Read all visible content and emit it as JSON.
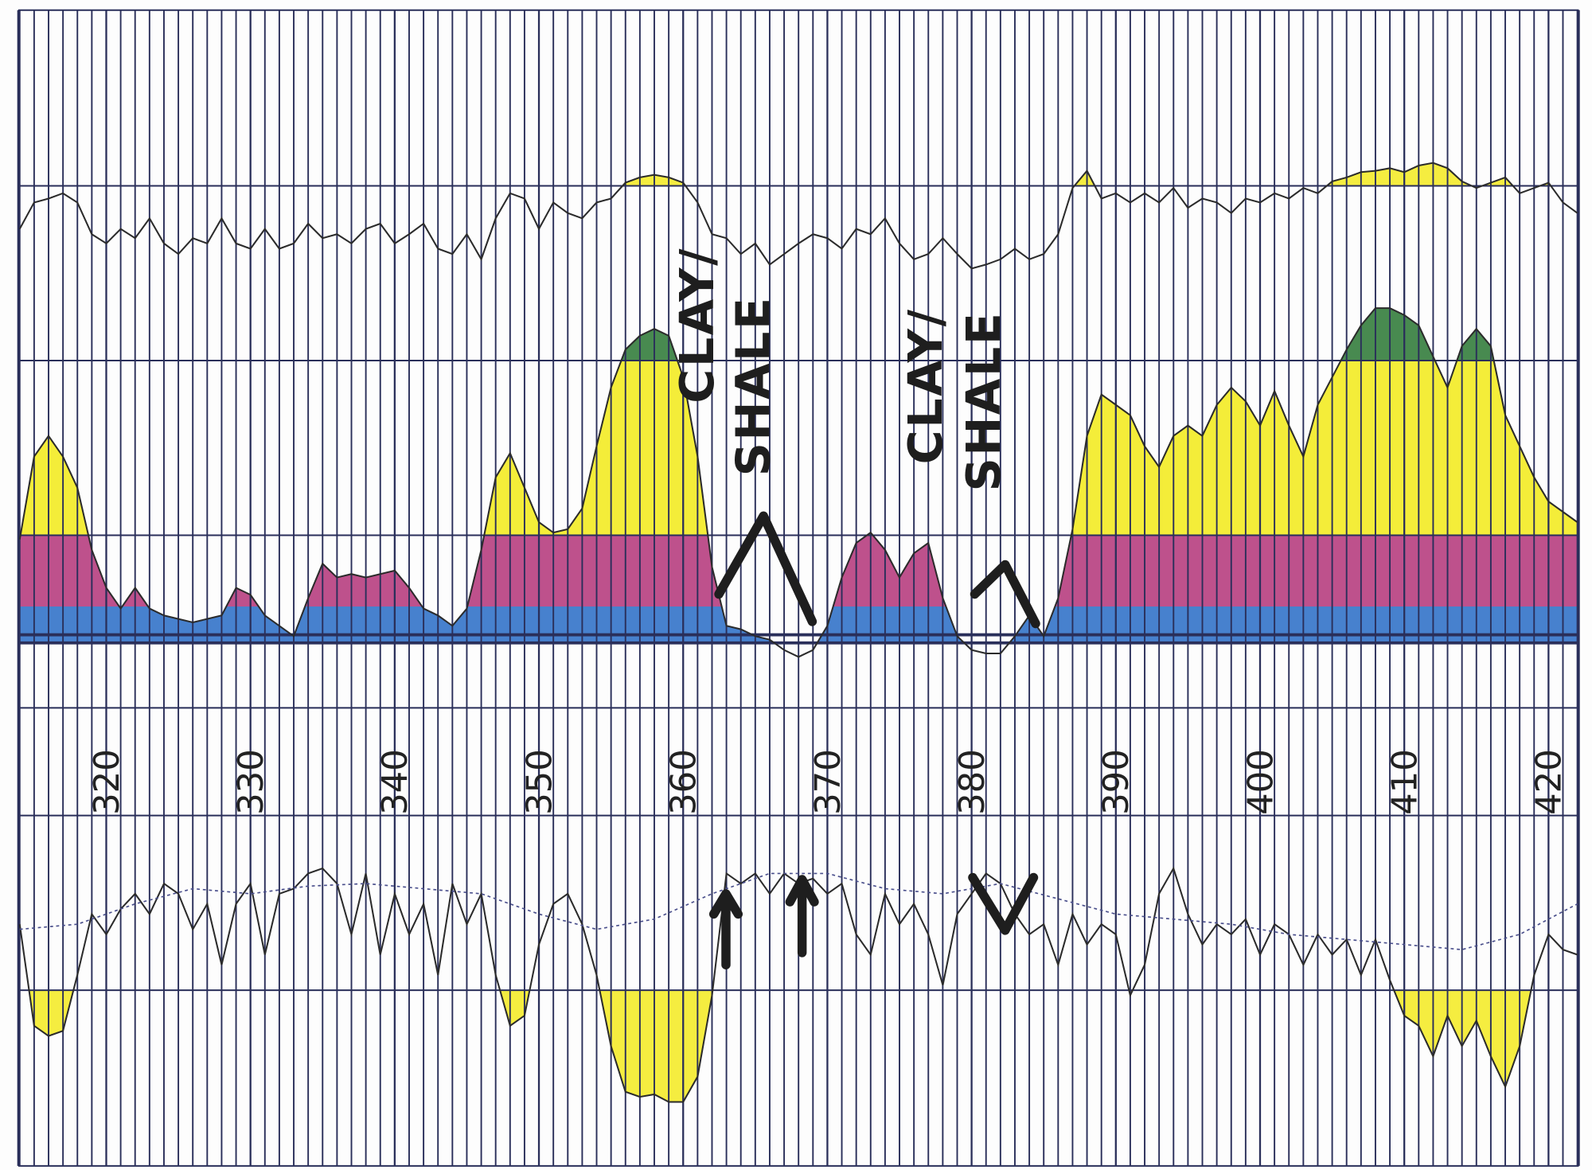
{
  "chart_data": {
    "type": "well-log",
    "xlim": [
      313.9,
      422.1
    ],
    "xticks": [
      320,
      330,
      340,
      350,
      360,
      370,
      380,
      390,
      400,
      410,
      420
    ],
    "xgrid_step": 1,
    "x": [
      314,
      315,
      316,
      317,
      318,
      319,
      320,
      321,
      322,
      323,
      324,
      325,
      326,
      327,
      328,
      329,
      330,
      331,
      332,
      333,
      334,
      335,
      336,
      337,
      338,
      339,
      340,
      341,
      342,
      343,
      344,
      345,
      346,
      347,
      348,
      349,
      350,
      351,
      352,
      353,
      354,
      355,
      356,
      357,
      358,
      359,
      360,
      361,
      362,
      363,
      364,
      365,
      366,
      367,
      368,
      369,
      370,
      371,
      372,
      373,
      374,
      375,
      376,
      377,
      378,
      379,
      380,
      381,
      382,
      383,
      384,
      385,
      386,
      387,
      388,
      389,
      390,
      391,
      392,
      393,
      394,
      395,
      396,
      397,
      398,
      399,
      400,
      401,
      402,
      403,
      404,
      405,
      406,
      407,
      408,
      409,
      410,
      411,
      412,
      413,
      414,
      415,
      416,
      417,
      418,
      419,
      420,
      421,
      422
    ],
    "annotations": [
      {
        "lines": [
          "CLAY/",
          "SHALE"
        ]
      },
      {
        "lines": [
          "CLAY/",
          "SHALE"
        ]
      }
    ],
    "tracks": [
      {
        "ylim": [
          0,
          100
        ],
        "shade_above": 75,
        "shade_color": "#f3ea1e",
        "series": [
          {
            "color": "#2b2b2b",
            "values": [
              42,
              62,
              65,
              69,
              62,
              38,
              31,
              42,
              35,
              50,
              31,
              23,
              35,
              31,
              50,
              31,
              27,
              42,
              27,
              31,
              46,
              35,
              38,
              31,
              42,
              46,
              31,
              38,
              46,
              27,
              23,
              38,
              19,
              50,
              69,
              65,
              42,
              62,
              54,
              50,
              62,
              65,
              77,
              81,
              83,
              81,
              77,
              62,
              38,
              35,
              23,
              31,
              15,
              23,
              31,
              38,
              35,
              27,
              42,
              38,
              50,
              31,
              19,
              23,
              35,
              23,
              12,
              15,
              19,
              27,
              19,
              23,
              38,
              73,
              86,
              65,
              69,
              62,
              69,
              62,
              73,
              58,
              65,
              62,
              54,
              65,
              62,
              69,
              65,
              73,
              69,
              78,
              81,
              85,
              86,
              88,
              85,
              90,
              92,
              88,
              78,
              73,
              77,
              81,
              69,
              73,
              77,
              62,
              54
            ]
          }
        ]
      },
      {
        "ylim": [
          -10,
          100
        ],
        "bands": [
          {
            "to": 12.6,
            "color": "#2d6fc7"
          },
          {
            "to": 33,
            "color": "#b5397c"
          },
          {
            "to": 84,
            "color": "#f3ea1e"
          },
          {
            "to": 100,
            "color": "#2f7a38"
          }
        ],
        "series": [
          {
            "color": "#2b2b2b",
            "values": [
              32,
              56,
              62,
              56,
              47,
              29,
              18,
              12,
              18,
              12,
              10,
              9,
              8,
              9,
              10,
              18,
              16,
              10,
              7,
              4,
              15,
              25,
              21,
              22,
              21,
              22,
              23,
              18,
              12,
              10,
              7,
              12,
              29,
              50,
              57,
              47,
              37,
              34,
              35,
              41,
              59,
              76,
              87,
              91,
              93,
              91,
              79,
              56,
              24,
              7,
              6,
              4,
              3,
              0,
              -2,
              0,
              7,
              21,
              31,
              34,
              29,
              21,
              28,
              31,
              15,
              4,
              0,
              -1,
              -1,
              4,
              10,
              4,
              15,
              35,
              62,
              74,
              71,
              68,
              59,
              53,
              62,
              65,
              62,
              71,
              76,
              72,
              65,
              75,
              65,
              56,
              71,
              79,
              87,
              94,
              99,
              99,
              97,
              94,
              85,
              76,
              88,
              93,
              88,
              68,
              59,
              50,
              43,
              40,
              37
            ]
          }
        ]
      },
      {
        "ylim": [
          0,
          100
        ],
        "shade_below": 46,
        "shade_color": "#f3ea1e",
        "series": [
          {
            "color": "#2b2b2b",
            "values": [
              72,
              32,
              28,
              30,
              52,
              76,
              68,
              78,
              84,
              76,
              88,
              84,
              70,
              80,
              56,
              80,
              88,
              60,
              84,
              86,
              92,
              94,
              88,
              68,
              92,
              60,
              84,
              68,
              80,
              52,
              88,
              72,
              84,
              52,
              32,
              36,
              64,
              80,
              84,
              72,
              52,
              24,
              6,
              4,
              5,
              2,
              2,
              12,
              44,
              92,
              88,
              92,
              84,
              92,
              88,
              90,
              84,
              88,
              68,
              60,
              84,
              72,
              80,
              68,
              48,
              76,
              84,
              92,
              88,
              76,
              68,
              72,
              56,
              76,
              64,
              72,
              68,
              44,
              56,
              84,
              94,
              76,
              64,
              72,
              68,
              74,
              60,
              72,
              68,
              56,
              68,
              60,
              66,
              52,
              66,
              50,
              36,
              32,
              20,
              36,
              24,
              34,
              20,
              8,
              24,
              52,
              68,
              62,
              60
            ]
          },
          {
            "color": "#4a4f8c",
            "dash": true,
            "x": [
              314,
              318,
              322,
              326,
              330,
              334,
              338,
              342,
              346,
              350,
              354,
              358,
              362,
              366,
              370,
              374,
              378,
              382,
              386,
              390,
              394,
              398,
              402,
              406,
              410,
              414,
              418,
              422
            ],
            "values": [
              70,
              72,
              80,
              86,
              84,
              87,
              88,
              86,
              84,
              76,
              70,
              74,
              84,
              92,
              92,
              86,
              84,
              88,
              82,
              76,
              74,
              72,
              68,
              66,
              64,
              62,
              68,
              80
            ]
          }
        ]
      }
    ]
  }
}
